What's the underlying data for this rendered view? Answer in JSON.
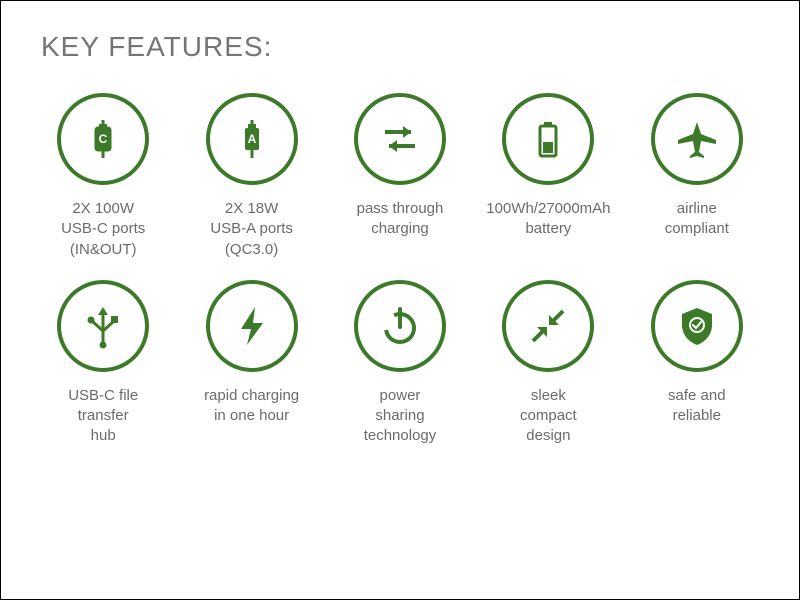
{
  "title": "KEY FEATURES:",
  "colors": {
    "accent": "#3c7a2a",
    "title_text": "#757575",
    "label_text": "#6b6b6b",
    "background": "#ffffff",
    "border": "#000000"
  },
  "typography": {
    "title_fontsize": 28,
    "label_fontsize": 15,
    "font_family": "Arial, Helvetica, sans-serif"
  },
  "layout": {
    "grid_cols": 5,
    "grid_rows": 2,
    "icon_circle_diameter": 92,
    "icon_circle_border_width": 4
  },
  "features": [
    {
      "icon": "usb-c",
      "label": "2X 100W\nUSB-C ports\n(IN&OUT)"
    },
    {
      "icon": "usb-a",
      "label": "2X 18W\nUSB-A ports\n(QC3.0)"
    },
    {
      "icon": "arrows",
      "label": "pass through\ncharging"
    },
    {
      "icon": "battery",
      "label": "100Wh/27000mAh\nbattery"
    },
    {
      "icon": "airplane",
      "label": "airline\ncompliant"
    },
    {
      "icon": "usb-hub",
      "label": "USB-C file\ntransfer\nhub"
    },
    {
      "icon": "bolt",
      "label": "rapid charging\nin one hour"
    },
    {
      "icon": "power",
      "label": "power\nsharing\ntechnology"
    },
    {
      "icon": "compact",
      "label": "sleek\ncompact\ndesign"
    },
    {
      "icon": "shield",
      "label": "safe and\nreliable"
    }
  ]
}
